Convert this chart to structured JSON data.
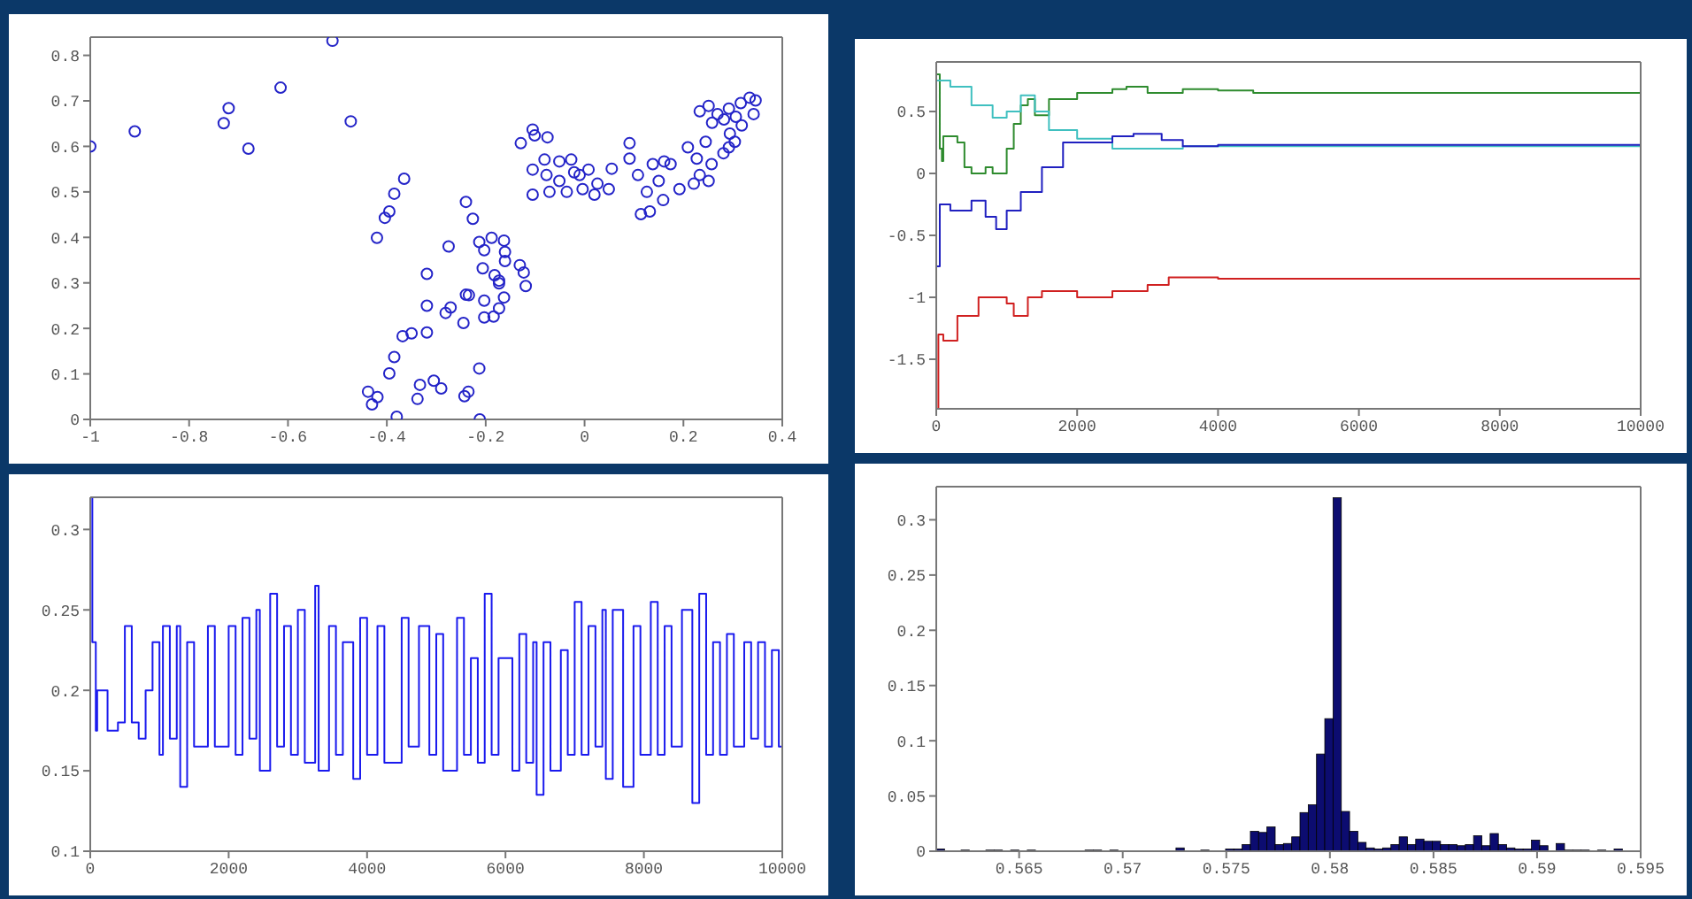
{
  "chart_data": [
    {
      "type": "scatter",
      "marker": "circle",
      "xlim": [
        -1,
        0.4
      ],
      "ylim": [
        0,
        0.84
      ],
      "xticks": [
        -1,
        -0.8,
        -0.6,
        -0.4,
        -0.2,
        0,
        0.2,
        0.4
      ],
      "yticks": [
        0,
        0.1,
        0.2,
        0.3,
        0.4,
        0.5,
        0.6,
        0.7,
        0.8
      ],
      "series": [
        {
          "color": "#2424c8",
          "x": [
            -1,
            -0.91,
            -0.73,
            -0.72,
            -0.68,
            -0.615,
            -0.51,
            -0.473,
            -0.365,
            -0.385,
            -0.395,
            -0.404,
            -0.42,
            -0.24,
            -0.226,
            -0.275,
            -0.319,
            -0.319,
            -0.368,
            -0.35,
            -0.319,
            -0.385,
            -0.395,
            -0.438,
            -0.43,
            -0.419,
            -0.38,
            -0.338,
            -0.333,
            -0.305,
            -0.29,
            -0.213,
            -0.235,
            -0.243,
            -0.212,
            -0.245,
            -0.281,
            -0.271,
            -0.24,
            -0.234,
            -0.203,
            -0.203,
            -0.184,
            -0.173,
            -0.163,
            -0.206,
            -0.213,
            -0.203,
            -0.188,
            -0.163,
            -0.161,
            -0.161,
            -0.182,
            -0.173,
            -0.131,
            -0.123,
            -0.119,
            -0.173,
            -0.129,
            -0.105,
            -0.101,
            -0.075,
            -0.105,
            -0.105,
            -0.081,
            -0.077,
            -0.071,
            -0.051,
            -0.051,
            -0.036,
            -0.027,
            -0.021,
            -0.01,
            -0.004,
            0.008,
            0.02,
            0.026,
            0.049,
            0.055,
            0.091,
            0.091,
            0.108,
            0.114,
            0.126,
            0.132,
            0.138,
            0.15,
            0.161,
            0.159,
            0.174,
            0.192,
            0.209,
            0.221,
            0.227,
            0.233,
            0.245,
            0.251,
            0.257,
            0.281,
            0.292,
            0.304,
            0.233,
            0.251,
            0.269,
            0.292,
            0.316,
            0.334,
            0.346,
            0.318,
            0.294,
            0.282,
            0.306,
            0.258,
            0.342
          ],
          "values": [
            0.6,
            0.633,
            0.651,
            0.684,
            0.595,
            0.729,
            0.832,
            0.655,
            0.529,
            0.496,
            0.457,
            0.443,
            0.399,
            0.478,
            0.441,
            0.38,
            0.32,
            0.25,
            0.183,
            0.189,
            0.191,
            0.137,
            0.101,
            0.061,
            0.033,
            0.049,
            0.006,
            0.045,
            0.076,
            0.085,
            0.068,
            0.112,
            0.061,
            0.051,
            0,
            0.212,
            0.234,
            0.246,
            0.274,
            0.273,
            0.261,
            0.224,
            0.226,
            0.244,
            0.268,
            0.332,
            0.39,
            0.372,
            0.399,
            0.393,
            0.368,
            0.348,
            0.317,
            0.305,
            0.339,
            0.323,
            0.293,
            0.299,
            0.607,
            0.637,
            0.624,
            0.62,
            0.549,
            0.494,
            0.571,
            0.537,
            0.5,
            0.524,
            0.567,
            0.5,
            0.571,
            0.543,
            0.537,
            0.506,
            0.549,
            0.494,
            0.518,
            0.506,
            0.551,
            0.607,
            0.573,
            0.537,
            0.451,
            0.5,
            0.457,
            0.561,
            0.524,
            0.567,
            0.482,
            0.561,
            0.506,
            0.598,
            0.518,
            0.573,
            0.537,
            0.61,
            0.524,
            0.561,
            0.585,
            0.598,
            0.61,
            0.677,
            0.689,
            0.671,
            0.683,
            0.695,
            0.707,
            0.701,
            0.646,
            0.628,
            0.659,
            0.665,
            0.652,
            0.671
          ]
        }
      ]
    },
    {
      "type": "step",
      "xlim": [
        0,
        10000
      ],
      "ylim": [
        -1.9,
        0.9
      ],
      "xticks": [
        0,
        2000,
        4000,
        6000,
        8000,
        10000
      ],
      "yticks": [
        -1.5,
        -1,
        -0.5,
        0,
        0.5
      ],
      "marker": "none",
      "line_style": "solid",
      "series": [
        {
          "color": "#2e8b2e",
          "x": [
            0,
            50,
            80,
            100,
            200,
            300,
            400,
            500,
            700,
            800,
            1000,
            1100,
            1200,
            1300,
            1400,
            1600,
            1800,
            2000,
            2500,
            2700,
            3000,
            3500,
            4000,
            4500,
            10000
          ],
          "values": [
            0.8,
            0.2,
            0.1,
            0.3,
            0.3,
            0.25,
            0.05,
            0,
            0.05,
            0,
            0.2,
            0.4,
            0.55,
            0.6,
            0.47,
            0.6,
            0.6,
            0.65,
            0.68,
            0.7,
            0.65,
            0.68,
            0.67,
            0.65,
            0.65
          ]
        },
        {
          "color": "#40c0c0",
          "x": [
            0,
            200,
            500,
            800,
            1000,
            1200,
            1400,
            1600,
            2000,
            2500,
            3000,
            3500,
            4000,
            10000
          ],
          "values": [
            0.75,
            0.7,
            0.55,
            0.45,
            0.5,
            0.63,
            0.5,
            0.35,
            0.28,
            0.2,
            0.2,
            0.22,
            0.22,
            0.23
          ]
        },
        {
          "color": "#2020c0",
          "x": [
            0,
            50,
            200,
            400,
            500,
            700,
            850,
            1000,
            1200,
            1500,
            1800,
            2000,
            2500,
            2800,
            3200,
            3500,
            4000,
            10000
          ],
          "values": [
            -0.75,
            -0.25,
            -0.3,
            -0.3,
            -0.22,
            -0.35,
            -0.45,
            -0.3,
            -0.15,
            0.05,
            0.25,
            0.25,
            0.3,
            0.32,
            0.27,
            0.22,
            0.23,
            0.23
          ]
        },
        {
          "color": "#d02020",
          "x": [
            0,
            30,
            100,
            300,
            600,
            1000,
            1100,
            1300,
            1500,
            2000,
            2500,
            3000,
            3300,
            4000,
            10000
          ],
          "values": [
            -1.9,
            -1.3,
            -1.35,
            -1.15,
            -1,
            -1.05,
            -1.15,
            -1,
            -0.95,
            -1,
            -0.95,
            -0.9,
            -0.84,
            -0.85,
            -0.86
          ]
        }
      ]
    },
    {
      "type": "step",
      "xlim": [
        0,
        10000
      ],
      "ylim": [
        0.1,
        0.32
      ],
      "xticks": [
        0,
        2000,
        4000,
        6000,
        8000,
        10000
      ],
      "yticks": [
        0.1,
        0.15,
        0.2,
        0.25,
        0.3
      ],
      "marker": "none",
      "line_style": "solid",
      "series": [
        {
          "color": "#1a1aee",
          "x": [
            0,
            30,
            80,
            100,
            200,
            250,
            400,
            500,
            600,
            700,
            800,
            900,
            1000,
            1050,
            1150,
            1250,
            1300,
            1400,
            1500,
            1700,
            1800,
            2000,
            2100,
            2200,
            2300,
            2400,
            2450,
            2600,
            2700,
            2800,
            2900,
            3000,
            3100,
            3250,
            3300,
            3450,
            3550,
            3650,
            3800,
            3900,
            4000,
            4150,
            4250,
            4500,
            4600,
            4750,
            4900,
            5000,
            5100,
            5300,
            5400,
            5500,
            5600,
            5700,
            5800,
            5900,
            6100,
            6200,
            6300,
            6400,
            6450,
            6550,
            6650,
            6800,
            6900,
            7000,
            7100,
            7200,
            7300,
            7400,
            7450,
            7550,
            7700,
            7850,
            7950,
            8100,
            8200,
            8300,
            8400,
            8550,
            8700,
            8800,
            8900,
            9000,
            9100,
            9200,
            9300,
            9450,
            9550,
            9650,
            9750,
            9850,
            9950,
            10000
          ],
          "values": [
            0.32,
            0.23,
            0.175,
            0.2,
            0.2,
            0.175,
            0.18,
            0.24,
            0.18,
            0.17,
            0.2,
            0.23,
            0.16,
            0.24,
            0.17,
            0.24,
            0.14,
            0.23,
            0.165,
            0.24,
            0.165,
            0.24,
            0.16,
            0.245,
            0.17,
            0.25,
            0.15,
            0.26,
            0.165,
            0.24,
            0.16,
            0.25,
            0.155,
            0.265,
            0.15,
            0.24,
            0.16,
            0.23,
            0.145,
            0.245,
            0.16,
            0.24,
            0.155,
            0.245,
            0.165,
            0.24,
            0.16,
            0.235,
            0.15,
            0.245,
            0.16,
            0.22,
            0.155,
            0.26,
            0.16,
            0.22,
            0.15,
            0.235,
            0.155,
            0.23,
            0.135,
            0.23,
            0.15,
            0.225,
            0.16,
            0.255,
            0.16,
            0.24,
            0.165,
            0.25,
            0.145,
            0.25,
            0.14,
            0.24,
            0.16,
            0.255,
            0.16,
            0.24,
            0.165,
            0.25,
            0.13,
            0.26,
            0.16,
            0.23,
            0.16,
            0.235,
            0.165,
            0.23,
            0.17,
            0.23,
            0.165,
            0.225,
            0.165,
            0.2
          ]
        }
      ]
    },
    {
      "type": "histogram",
      "xlim": [
        0.561,
        0.595
      ],
      "ylim": [
        0,
        0.33
      ],
      "xticks": [
        0.565,
        0.57,
        0.575,
        0.58,
        0.585,
        0.59,
        0.595
      ],
      "yticks": [
        0,
        0.05,
        0.1,
        0.15,
        0.2,
        0.25,
        0.3
      ],
      "color": "#0c0c70",
      "bins": [
        0.561,
        0.5614,
        0.5618,
        0.5622,
        0.5626,
        0.563,
        0.5634,
        0.5638,
        0.5642,
        0.5646,
        0.565,
        0.5654,
        0.5658,
        0.5662,
        0.5666,
        0.567,
        0.5674,
        0.5678,
        0.5682,
        0.5686,
        0.569,
        0.5694,
        0.5698,
        0.5702,
        0.5706,
        0.571,
        0.5714,
        0.5718,
        0.5722,
        0.5726,
        0.573,
        0.5734,
        0.5738,
        0.5742,
        0.5746,
        0.575,
        0.5754,
        0.5758,
        0.5762,
        0.5766,
        0.577,
        0.5774,
        0.5778,
        0.5782,
        0.5786,
        0.579,
        0.5794,
        0.5798,
        0.5802,
        0.5806,
        0.581,
        0.5814,
        0.5818,
        0.5822,
        0.5826,
        0.583,
        0.5834,
        0.5838,
        0.5842,
        0.5846,
        0.585,
        0.5854,
        0.5858,
        0.5862,
        0.5866,
        0.587,
        0.5874,
        0.5878,
        0.5882,
        0.5886,
        0.589,
        0.5894,
        0.5898,
        0.5902,
        0.5906,
        0.591,
        0.5914,
        0.5918,
        0.5922,
        0.5926,
        0.593,
        0.5934,
        0.5938,
        0.5942,
        0.5946,
        0.595
      ],
      "values": [
        0.002,
        0,
        0,
        0.001,
        0,
        0,
        0.001,
        0.001,
        0,
        0.001,
        0,
        0.001,
        0,
        0,
        0,
        0,
        0,
        0,
        0.001,
        0.001,
        0,
        0.001,
        0,
        0,
        0,
        0,
        0,
        0,
        0,
        0.003,
        0,
        0,
        0.001,
        0,
        0,
        0.002,
        0.002,
        0.006,
        0.018,
        0.017,
        0.022,
        0.006,
        0.007,
        0.013,
        0.035,
        0.042,
        0.088,
        0.12,
        0.32,
        0.036,
        0.018,
        0.008,
        0.003,
        0.002,
        0.003,
        0.006,
        0.013,
        0.006,
        0.011,
        0.009,
        0.009,
        0.006,
        0.006,
        0.005,
        0.006,
        0.014,
        0.005,
        0.016,
        0.006,
        0.003,
        0.002,
        0.002,
        0.01,
        0.005,
        0,
        0.007,
        0.001,
        0.001,
        0.001,
        0,
        0.001,
        0,
        0.002,
        0,
        0
      ]
    }
  ]
}
